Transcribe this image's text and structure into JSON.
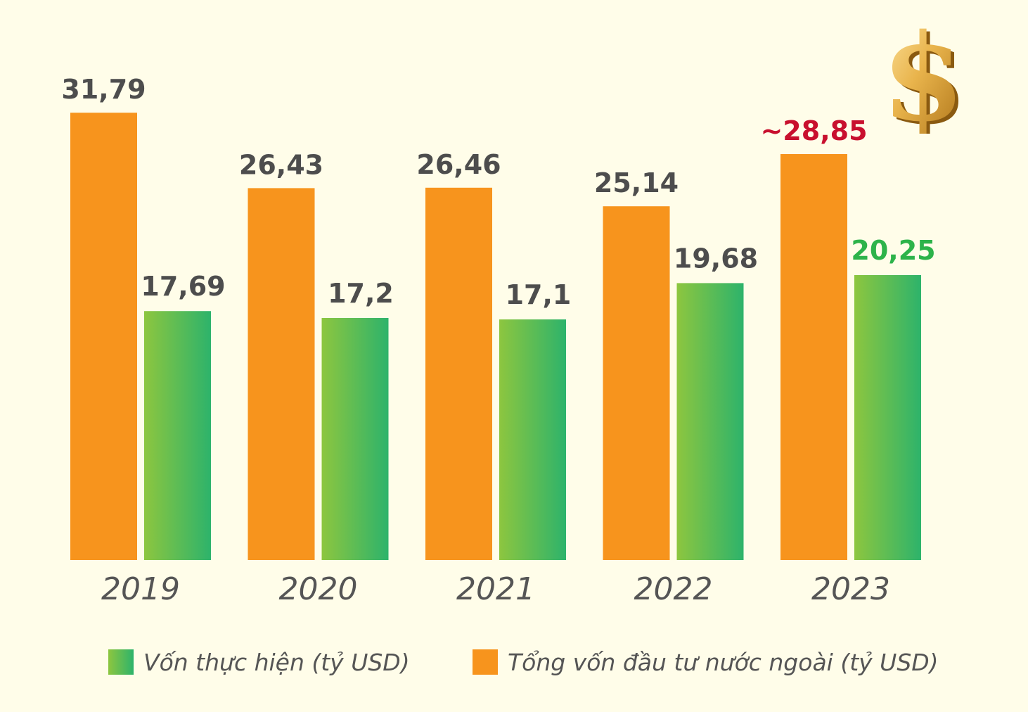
{
  "chart_data": {
    "type": "bar",
    "title": "",
    "xlabel": "",
    "ylabel": "",
    "ylim": [
      0,
      35
    ],
    "grid": false,
    "legend_position": "bottom",
    "categories": [
      "2019",
      "2020",
      "2021",
      "2022",
      "2023"
    ],
    "series": [
      {
        "name": "Tổng vốn đầu tư nước ngoài (tỷ USD)",
        "color": "#F7941D",
        "values": [
          31.79,
          26.43,
          26.46,
          25.14,
          28.85
        ],
        "labels": [
          "31,79",
          "26,43",
          "26,46",
          "25,14",
          "~28,85"
        ]
      },
      {
        "name": "Vốn thực hiện (tỷ USD)",
        "color": "#3DB86A",
        "values": [
          17.69,
          17.2,
          17.1,
          19.68,
          20.25
        ],
        "labels": [
          "17,69",
          "17,2",
          "17,1",
          "19,68",
          "20,25"
        ]
      }
    ],
    "label_colors": {
      "default": "#4D4D4D",
      "highlight_total": "#C8102E",
      "highlight_realized": "#2DB34A"
    }
  },
  "legend": {
    "realized_label": "Vốn thực hiện (tỷ USD)",
    "total_label": "Tổng vốn đầu tư nước ngoài (tỷ USD)"
  },
  "decoration": {
    "icon": "dollar-sign-icon",
    "glyph": "$"
  }
}
